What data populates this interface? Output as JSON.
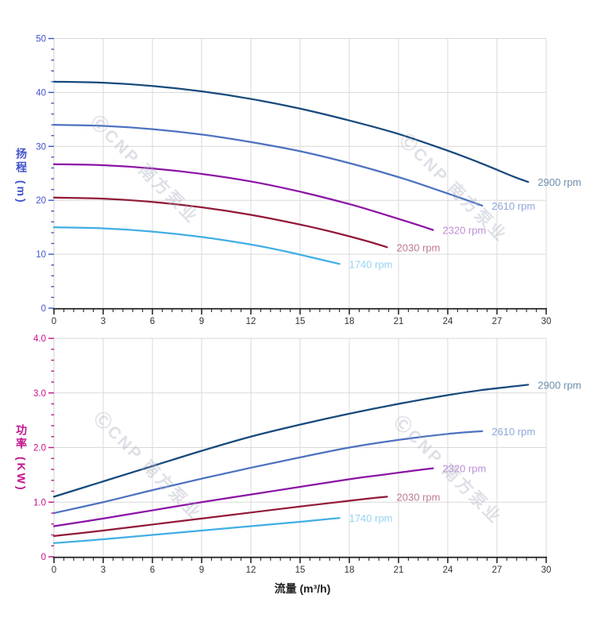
{
  "watermark": {
    "text": "ⒸCNP 南方泵业"
  },
  "chart_data": [
    {
      "type": "line",
      "title": "",
      "xlabel": "流量 (m³/h)",
      "ylabel": "扬程 (m)",
      "xlim": [
        0,
        30
      ],
      "ylim": [
        0,
        50
      ],
      "grid": true,
      "legend_position": "curve-end-labels",
      "x_major_step": 3,
      "x_minor_step": 0.6,
      "y_minor_step": 2,
      "x_ticks": [
        [
          0,
          "0"
        ],
        [
          3,
          "3"
        ],
        [
          6,
          "6"
        ],
        [
          9,
          "9"
        ],
        [
          12,
          "12"
        ],
        [
          15,
          "15"
        ],
        [
          18,
          "18"
        ],
        [
          21,
          "21"
        ],
        [
          24,
          "24"
        ],
        [
          27,
          "27"
        ],
        [
          30,
          "30"
        ]
      ],
      "y_ticks": [
        [
          0,
          "0"
        ],
        [
          10,
          "10"
        ],
        [
          20,
          "20"
        ],
        [
          30,
          "30"
        ],
        [
          40,
          "40"
        ],
        [
          50,
          "50"
        ]
      ],
      "axis_text_color": "#4253cb",
      "grid_color": "#d9d9d9",
      "x_axis_line_color": "#222222",
      "x_tick_text_color": "#333333",
      "series": [
        {
          "name": "2900 rpm",
          "color": "#174a7c",
          "label_color": "#6d8dab",
          "points": [
            [
              0,
              42
            ],
            [
              3,
              41.8
            ],
            [
              6,
              41.2
            ],
            [
              9,
              40.2
            ],
            [
              12,
              38.8
            ],
            [
              15,
              37.0
            ],
            [
              18,
              34.8
            ],
            [
              21,
              32.3
            ],
            [
              24,
              29.2
            ],
            [
              26,
              26.9
            ],
            [
              28,
              24.4
            ],
            [
              28.9,
              23.4
            ]
          ]
        },
        {
          "name": "2610 rpm",
          "color": "#4d72c0",
          "label_color": "#8fa6d9",
          "points": [
            [
              0,
              34
            ],
            [
              3,
              33.8
            ],
            [
              6,
              33.2
            ],
            [
              9,
              32.2
            ],
            [
              12,
              30.8
            ],
            [
              15,
              29.1
            ],
            [
              18,
              26.9
            ],
            [
              21,
              24.3
            ],
            [
              23,
              22.3
            ],
            [
              25,
              20.2
            ],
            [
              26.1,
              19.0
            ]
          ]
        },
        {
          "name": "2320 rpm",
          "color": "#8c13a5",
          "label_color": "#bd8ed4",
          "points": [
            [
              0,
              26.7
            ],
            [
              3,
              26.5
            ],
            [
              6,
              25.9
            ],
            [
              9,
              24.9
            ],
            [
              12,
              23.5
            ],
            [
              15,
              21.6
            ],
            [
              18,
              19.3
            ],
            [
              20,
              17.5
            ],
            [
              22,
              15.6
            ],
            [
              23.1,
              14.5
            ]
          ]
        },
        {
          "name": "2030 rpm",
          "color": "#921a38",
          "label_color": "#bd7a92",
          "points": [
            [
              0,
              20.5
            ],
            [
              3,
              20.3
            ],
            [
              6,
              19.7
            ],
            [
              9,
              18.7
            ],
            [
              12,
              17.3
            ],
            [
              15,
              15.5
            ],
            [
              17,
              14.1
            ],
            [
              19,
              12.5
            ],
            [
              20.3,
              11.3
            ]
          ]
        },
        {
          "name": "1740 rpm",
          "color": "#41aee4",
          "label_color": "#94d3f2",
          "points": [
            [
              0,
              15
            ],
            [
              3,
              14.8
            ],
            [
              6,
              14.2
            ],
            [
              9,
              13.2
            ],
            [
              12,
              11.8
            ],
            [
              14,
              10.6
            ],
            [
              16,
              9.2
            ],
            [
              17.4,
              8.2
            ]
          ]
        }
      ]
    },
    {
      "type": "line",
      "title": "",
      "xlabel": "流量 (m³/h)",
      "ylabel": "功率 (KW)",
      "xlim": [
        0,
        30
      ],
      "ylim": [
        0,
        4
      ],
      "grid": true,
      "legend_position": "curve-end-labels",
      "x_major_step": 3,
      "x_minor_step": 0.6,
      "y_minor_step": 0.2,
      "x_ticks": [
        [
          0,
          "0"
        ],
        [
          3,
          "3"
        ],
        [
          6,
          "6"
        ],
        [
          9,
          "9"
        ],
        [
          12,
          "12"
        ],
        [
          15,
          "15"
        ],
        [
          18,
          "18"
        ],
        [
          21,
          "21"
        ],
        [
          24,
          "24"
        ],
        [
          27,
          "27"
        ],
        [
          30,
          "30"
        ]
      ],
      "y_ticks": [
        [
          0,
          "0"
        ],
        [
          1,
          "1.0"
        ],
        [
          2,
          "2.0"
        ],
        [
          3,
          "3.0"
        ],
        [
          4,
          "4.0"
        ]
      ],
      "axis_text_color": "#c2138c",
      "grid_color": "#d9d9d9",
      "x_axis_line_color": "#222222",
      "x_tick_text_color": "#333333",
      "series": [
        {
          "name": "2900 rpm",
          "color": "#174a7c",
          "label_color": "#6d8dab",
          "points": [
            [
              0,
              1.1
            ],
            [
              3,
              1.38
            ],
            [
              6,
              1.66
            ],
            [
              9,
              1.94
            ],
            [
              12,
              2.2
            ],
            [
              15,
              2.42
            ],
            [
              18,
              2.62
            ],
            [
              21,
              2.8
            ],
            [
              24,
              2.96
            ],
            [
              26,
              3.05
            ],
            [
              28,
              3.12
            ],
            [
              28.9,
              3.15
            ]
          ]
        },
        {
          "name": "2610 rpm",
          "color": "#4d72c0",
          "label_color": "#8fa6d9",
          "points": [
            [
              0,
              0.8
            ],
            [
              3,
              1.0
            ],
            [
              6,
              1.22
            ],
            [
              9,
              1.43
            ],
            [
              12,
              1.63
            ],
            [
              15,
              1.82
            ],
            [
              18,
              2.0
            ],
            [
              21,
              2.14
            ],
            [
              24,
              2.25
            ],
            [
              26.1,
              2.3
            ]
          ]
        },
        {
          "name": "2320 rpm",
          "color": "#8c13a5",
          "label_color": "#bd8ed4",
          "points": [
            [
              0,
              0.56
            ],
            [
              3,
              0.7
            ],
            [
              6,
              0.85
            ],
            [
              9,
              1.0
            ],
            [
              12,
              1.14
            ],
            [
              15,
              1.28
            ],
            [
              18,
              1.42
            ],
            [
              20,
              1.5
            ],
            [
              22,
              1.58
            ],
            [
              23.1,
              1.62
            ]
          ]
        },
        {
          "name": "2030 rpm",
          "color": "#921a38",
          "label_color": "#bd7a92",
          "points": [
            [
              0,
              0.38
            ],
            [
              3,
              0.48
            ],
            [
              6,
              0.59
            ],
            [
              9,
              0.7
            ],
            [
              12,
              0.81
            ],
            [
              15,
              0.92
            ],
            [
              17,
              0.99
            ],
            [
              19,
              1.06
            ],
            [
              20.3,
              1.1
            ]
          ]
        },
        {
          "name": "1740 rpm",
          "color": "#41aee4",
          "label_color": "#94d3f2",
          "points": [
            [
              0,
              0.25
            ],
            [
              3,
              0.32
            ],
            [
              6,
              0.4
            ],
            [
              9,
              0.48
            ],
            [
              12,
              0.56
            ],
            [
              15,
              0.64
            ],
            [
              17.4,
              0.71
            ]
          ]
        }
      ]
    }
  ]
}
